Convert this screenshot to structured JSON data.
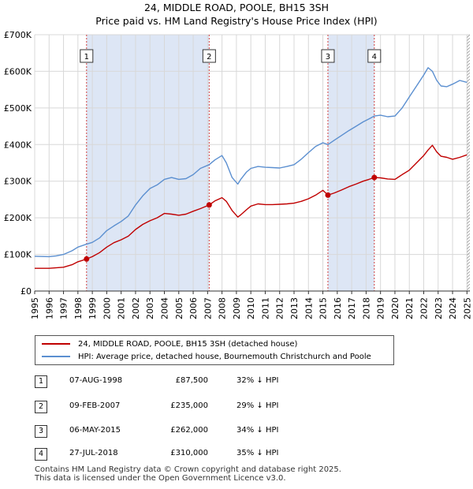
{
  "header": {
    "title": "24, MIDDLE ROAD, POOLE, BH15 3SH",
    "subtitle": "Price paid vs. HM Land Registry's House Price Index (HPI)"
  },
  "colors": {
    "property_line": "#c00000",
    "hpi_line": "#5b8fd0",
    "shade": "#dde6f5",
    "grid": "#d8d8d8",
    "marker_line": "#d04040"
  },
  "chart_data": {
    "type": "line",
    "title": "Price paid vs. HM Land Registry's House Price Index (HPI)",
    "xlim": [
      1995,
      2025.2
    ],
    "ylim": [
      0,
      700000
    ],
    "x_ticks": [
      1995,
      1996,
      1997,
      1998,
      1999,
      2000,
      2001,
      2002,
      2003,
      2004,
      2005,
      2006,
      2007,
      2008,
      2009,
      2010,
      2011,
      2012,
      2013,
      2014,
      2015,
      2016,
      2017,
      2018,
      2019,
      2020,
      2021,
      2022,
      2023,
      2024,
      2025
    ],
    "y_ticks": [
      0,
      100000,
      200000,
      300000,
      400000,
      500000,
      600000,
      700000
    ],
    "y_tick_labels": [
      "£0",
      "£100K",
      "£200K",
      "£300K",
      "£400K",
      "£500K",
      "£600K",
      "£700K"
    ],
    "shaded_periods": [
      [
        1998.6,
        2007.11
      ],
      [
        2015.35,
        2018.57
      ]
    ],
    "hatched_from": 2025.0,
    "series": [
      {
        "name": "24, MIDDLE ROAD, POOLE, BH15 3SH (detached house)",
        "x": [
          1995,
          1996,
          1997,
          1997.6,
          1998,
          1998.6,
          1999,
          1999.5,
          2000,
          2000.5,
          2001,
          2001.5,
          2002,
          2002.5,
          2003,
          2003.5,
          2004,
          2004.5,
          2005,
          2005.5,
          2006,
          2006.5,
          2007.11,
          2007.5,
          2008,
          2008.3,
          2008.7,
          2009.1,
          2009.3,
          2009.7,
          2010,
          2010.5,
          2011,
          2011.5,
          2012,
          2012.5,
          2013,
          2013.5,
          2014,
          2014.5,
          2015,
          2015.35,
          2015.8,
          2016.3,
          2016.8,
          2017.3,
          2017.8,
          2018.2,
          2018.57,
          2019,
          2019.5,
          2020,
          2020.5,
          2021,
          2021.5,
          2022,
          2022.3,
          2022.6,
          2022.9,
          2023.2,
          2023.6,
          2024,
          2024.5,
          2025
        ],
        "y": [
          62000,
          62000,
          65000,
          72000,
          80000,
          87500,
          94000,
          105000,
          120000,
          132000,
          140000,
          150000,
          168000,
          182000,
          192000,
          200000,
          212000,
          210000,
          207000,
          210000,
          218000,
          225000,
          235000,
          246000,
          255000,
          245000,
          220000,
          202000,
          208000,
          222000,
          232000,
          238000,
          236000,
          236000,
          237000,
          238000,
          240000,
          245000,
          252000,
          262000,
          275000,
          262000,
          268000,
          276000,
          285000,
          292000,
          300000,
          305000,
          310000,
          309000,
          306000,
          305000,
          318000,
          330000,
          350000,
          370000,
          385000,
          398000,
          380000,
          368000,
          365000,
          360000,
          365000,
          372000
        ]
      },
      {
        "name": "HPI: Average price, detached house, Bournemouth Christchurch and Poole",
        "x": [
          1995,
          1996,
          1996.5,
          1997,
          1997.6,
          1998,
          1998.6,
          1999,
          1999.5,
          2000,
          2000.5,
          2001,
          2001.5,
          2002,
          2002.5,
          2003,
          2003.5,
          2004,
          2004.5,
          2005,
          2005.5,
          2006,
          2006.5,
          2007.11,
          2007.5,
          2008,
          2008.3,
          2008.7,
          2009.1,
          2009.3,
          2009.7,
          2010,
          2010.5,
          2011,
          2011.5,
          2012,
          2012.5,
          2013,
          2013.5,
          2014,
          2014.5,
          2015,
          2015.35,
          2015.8,
          2016.3,
          2016.8,
          2017.3,
          2017.8,
          2018.2,
          2018.57,
          2019,
          2019.5,
          2020,
          2020.5,
          2021,
          2021.5,
          2022,
          2022.3,
          2022.6,
          2022.9,
          2023.2,
          2023.6,
          2024,
          2024.5,
          2025
        ],
        "y": [
          95000,
          94000,
          96000,
          100000,
          110000,
          120000,
          128000,
          133000,
          145000,
          165000,
          178000,
          190000,
          205000,
          235000,
          260000,
          280000,
          290000,
          305000,
          310000,
          305000,
          307000,
          318000,
          335000,
          345000,
          358000,
          370000,
          350000,
          310000,
          292000,
          305000,
          325000,
          335000,
          340000,
          338000,
          337000,
          336000,
          340000,
          345000,
          360000,
          378000,
          395000,
          405000,
          400000,
          412000,
          425000,
          438000,
          450000,
          462000,
          470000,
          478000,
          480000,
          476000,
          478000,
          500000,
          530000,
          560000,
          590000,
          610000,
          600000,
          575000,
          560000,
          558000,
          565000,
          575000,
          570000
        ]
      }
    ],
    "transactions": [
      {
        "num": "1",
        "x": 1998.6,
        "y": 87500
      },
      {
        "num": "2",
        "x": 2007.11,
        "y": 235000
      },
      {
        "num": "3",
        "x": 2015.35,
        "y": 262000
      },
      {
        "num": "4",
        "x": 2018.57,
        "y": 310000
      }
    ]
  },
  "legend": {
    "property": "24, MIDDLE ROAD, POOLE, BH15 3SH (detached house)",
    "hpi": "HPI: Average price, detached house, Bournemouth Christchurch and Poole"
  },
  "transactions_table": [
    {
      "num": "1",
      "date": "07-AUG-1998",
      "price": "£87,500",
      "hpi": "32% ↓ HPI"
    },
    {
      "num": "2",
      "date": "09-FEB-2007",
      "price": "£235,000",
      "hpi": "29% ↓ HPI"
    },
    {
      "num": "3",
      "date": "06-MAY-2015",
      "price": "£262,000",
      "hpi": "34% ↓ HPI"
    },
    {
      "num": "4",
      "date": "27-JUL-2018",
      "price": "£310,000",
      "hpi": "35% ↓ HPI"
    }
  ],
  "footer": {
    "line1": "Contains HM Land Registry data © Crown copyright and database right 2025.",
    "line2": "This data is licensed under the Open Government Licence v3.0."
  }
}
